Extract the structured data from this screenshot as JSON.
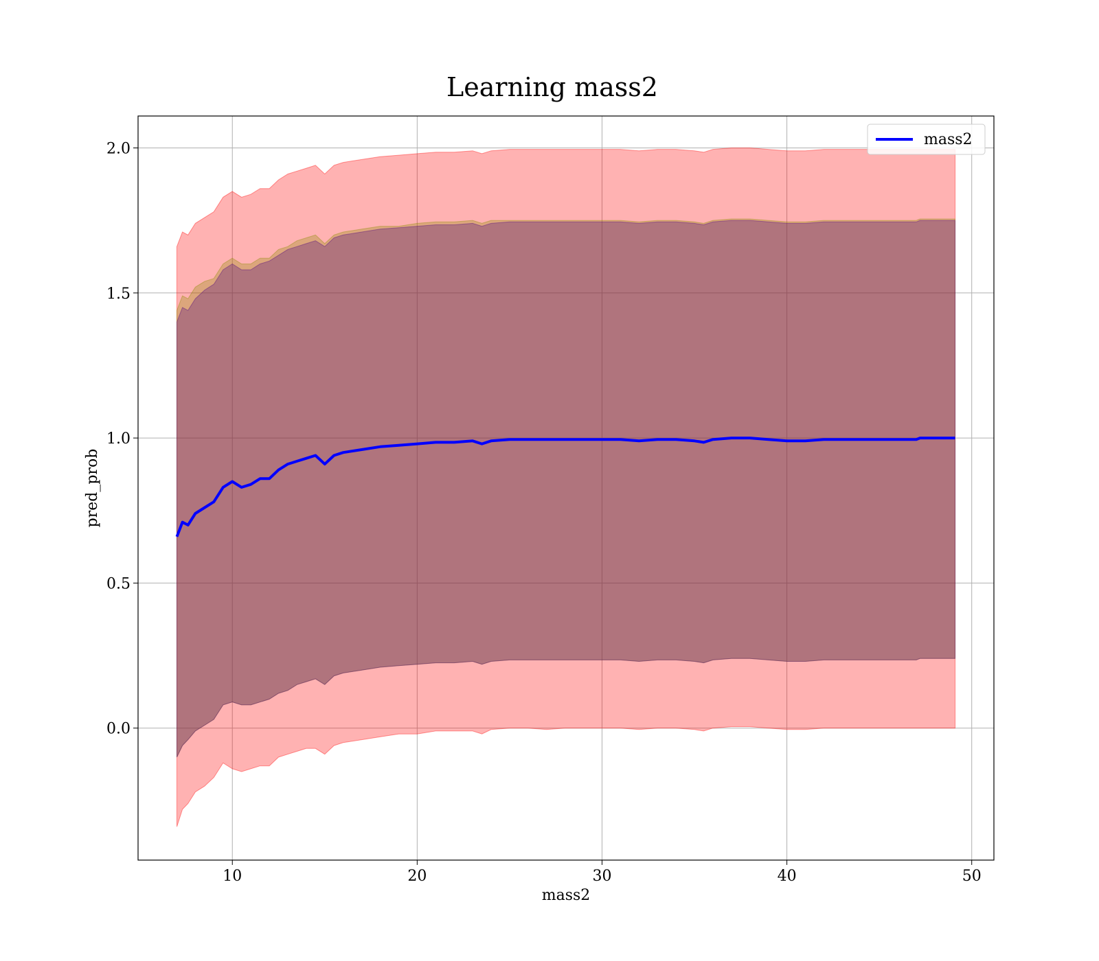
{
  "chart_data": {
    "type": "line",
    "title": "Learning mass2",
    "xlabel": "mass2",
    "ylabel": "pred_prob",
    "xlim": [
      4.9,
      51.2
    ],
    "ylim": [
      -0.455,
      2.11
    ],
    "grid": true,
    "legend_position": "top-right",
    "x_ticks": [
      10,
      20,
      30,
      40,
      50
    ],
    "x_tick_labels": [
      "10",
      "20",
      "30",
      "40",
      "50"
    ],
    "y_ticks": [
      0.0,
      0.5,
      1.0,
      1.5,
      2.0
    ],
    "y_tick_labels": [
      "0.0",
      "0.5",
      "1.0",
      "1.5",
      "2.0"
    ],
    "x": [
      7.0,
      7.3,
      7.6,
      8.0,
      8.5,
      9.0,
      9.5,
      10.0,
      10.5,
      11.0,
      11.5,
      12.0,
      12.5,
      13.0,
      13.5,
      14.0,
      14.5,
      15.0,
      15.5,
      16.0,
      17.0,
      18.0,
      19.0,
      20.0,
      21.0,
      22.0,
      23.0,
      23.5,
      24.0,
      25.0,
      26.0,
      27.0,
      28.0,
      29.0,
      30.0,
      31.0,
      32.0,
      33.0,
      34.0,
      35.0,
      35.5,
      36.0,
      37.0,
      38.0,
      39.0,
      40.0,
      41.0,
      42.0,
      43.0,
      44.0,
      45.0,
      46.0,
      47.0,
      47.2,
      48.0,
      49.1
    ],
    "series": [
      {
        "name": "mass2",
        "color": "#0000ff",
        "values": [
          0.66,
          0.71,
          0.7,
          0.74,
          0.76,
          0.78,
          0.83,
          0.85,
          0.83,
          0.84,
          0.86,
          0.86,
          0.89,
          0.91,
          0.92,
          0.93,
          0.94,
          0.91,
          0.94,
          0.95,
          0.96,
          0.97,
          0.975,
          0.98,
          0.985,
          0.985,
          0.99,
          0.98,
          0.99,
          0.995,
          0.995,
          0.995,
          0.995,
          0.995,
          0.995,
          0.995,
          0.99,
          0.995,
          0.995,
          0.99,
          0.985,
          0.995,
          1.0,
          1.0,
          0.995,
          0.99,
          0.99,
          0.995,
          0.995,
          0.995,
          0.995,
          0.995,
          0.995,
          1.0,
          1.0,
          1.0
        ]
      }
    ],
    "bands": [
      {
        "color": "#ff0000",
        "opacity": 0.3,
        "lower": [
          -0.34,
          -0.28,
          -0.26,
          -0.22,
          -0.2,
          -0.17,
          -0.12,
          -0.14,
          -0.15,
          -0.14,
          -0.13,
          -0.13,
          -0.1,
          -0.09,
          -0.08,
          -0.07,
          -0.07,
          -0.09,
          -0.06,
          -0.05,
          -0.04,
          -0.03,
          -0.02,
          -0.02,
          -0.01,
          -0.01,
          -0.01,
          -0.02,
          -0.005,
          0.0,
          0.0,
          -0.005,
          0.0,
          0.0,
          0.0,
          0.0,
          -0.005,
          0.0,
          0.0,
          -0.005,
          -0.01,
          0.0,
          0.005,
          0.005,
          0.0,
          -0.005,
          -0.005,
          0.0,
          0.0,
          0.0,
          0.0,
          0.0,
          0.0,
          0.0,
          0.0,
          0.0
        ],
        "upper": [
          1.66,
          1.71,
          1.7,
          1.74,
          1.76,
          1.78,
          1.83,
          1.85,
          1.83,
          1.84,
          1.86,
          1.86,
          1.89,
          1.91,
          1.92,
          1.93,
          1.94,
          1.91,
          1.94,
          1.95,
          1.96,
          1.97,
          1.975,
          1.98,
          1.985,
          1.985,
          1.99,
          1.98,
          1.99,
          1.995,
          1.995,
          1.995,
          1.995,
          1.995,
          1.995,
          1.995,
          1.99,
          1.995,
          1.995,
          1.99,
          1.985,
          1.995,
          2.0,
          2.0,
          1.995,
          1.99,
          1.99,
          1.995,
          1.995,
          1.995,
          1.995,
          1.995,
          1.995,
          1.995,
          1.995,
          1.995
        ]
      },
      {
        "color": "#8b8b00",
        "opacity": 0.3,
        "lower": [
          -0.1,
          -0.06,
          -0.04,
          -0.01,
          0.01,
          0.03,
          0.08,
          0.09,
          0.08,
          0.08,
          0.09,
          0.1,
          0.12,
          0.13,
          0.15,
          0.16,
          0.17,
          0.15,
          0.18,
          0.19,
          0.2,
          0.21,
          0.215,
          0.22,
          0.225,
          0.225,
          0.23,
          0.22,
          0.23,
          0.235,
          0.235,
          0.235,
          0.235,
          0.235,
          0.235,
          0.235,
          0.23,
          0.235,
          0.235,
          0.23,
          0.225,
          0.235,
          0.24,
          0.24,
          0.235,
          0.23,
          0.23,
          0.235,
          0.235,
          0.235,
          0.235,
          0.235,
          0.235,
          0.24,
          0.24,
          0.24
        ],
        "upper": [
          1.44,
          1.49,
          1.48,
          1.52,
          1.54,
          1.55,
          1.6,
          1.62,
          1.6,
          1.6,
          1.62,
          1.62,
          1.65,
          1.66,
          1.68,
          1.69,
          1.7,
          1.67,
          1.7,
          1.71,
          1.72,
          1.73,
          1.73,
          1.74,
          1.745,
          1.745,
          1.75,
          1.74,
          1.75,
          1.75,
          1.75,
          1.75,
          1.75,
          1.75,
          1.75,
          1.75,
          1.745,
          1.75,
          1.75,
          1.745,
          1.74,
          1.75,
          1.755,
          1.755,
          1.75,
          1.745,
          1.745,
          1.75,
          1.75,
          1.75,
          1.75,
          1.75,
          1.75,
          1.755,
          1.755,
          1.755
        ]
      },
      {
        "color": "#4b0082",
        "opacity": 0.3,
        "lower": [
          -0.1,
          -0.06,
          -0.04,
          -0.01,
          0.01,
          0.03,
          0.08,
          0.09,
          0.08,
          0.08,
          0.09,
          0.1,
          0.12,
          0.13,
          0.15,
          0.16,
          0.17,
          0.15,
          0.18,
          0.19,
          0.2,
          0.21,
          0.215,
          0.22,
          0.225,
          0.225,
          0.23,
          0.22,
          0.23,
          0.235,
          0.235,
          0.235,
          0.235,
          0.235,
          0.235,
          0.235,
          0.23,
          0.235,
          0.235,
          0.23,
          0.225,
          0.235,
          0.24,
          0.24,
          0.235,
          0.23,
          0.23,
          0.235,
          0.235,
          0.235,
          0.235,
          0.235,
          0.235,
          0.24,
          0.24,
          0.24
        ],
        "upper": [
          1.4,
          1.45,
          1.44,
          1.48,
          1.51,
          1.53,
          1.58,
          1.6,
          1.58,
          1.58,
          1.6,
          1.61,
          1.63,
          1.65,
          1.66,
          1.67,
          1.68,
          1.66,
          1.69,
          1.7,
          1.71,
          1.72,
          1.725,
          1.73,
          1.735,
          1.735,
          1.74,
          1.73,
          1.74,
          1.745,
          1.745,
          1.745,
          1.745,
          1.745,
          1.745,
          1.745,
          1.74,
          1.745,
          1.745,
          1.74,
          1.735,
          1.745,
          1.75,
          1.75,
          1.745,
          1.74,
          1.74,
          1.745,
          1.745,
          1.745,
          1.745,
          1.745,
          1.745,
          1.75,
          1.75,
          1.75
        ]
      }
    ]
  }
}
